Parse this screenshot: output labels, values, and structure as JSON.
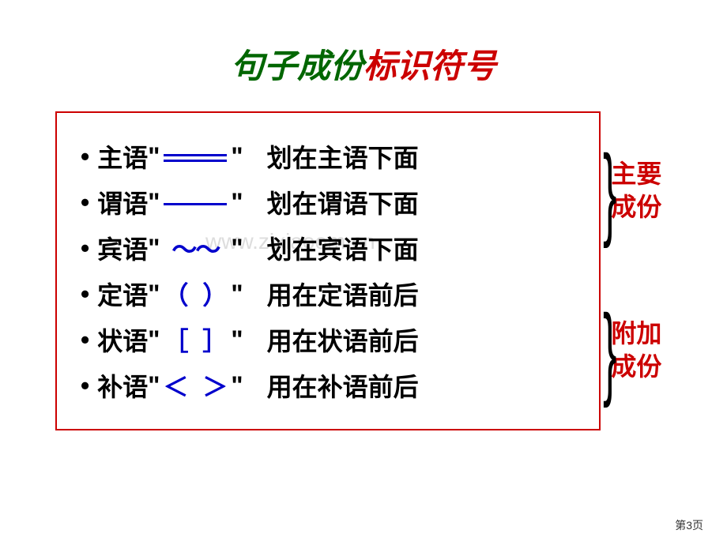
{
  "title": {
    "main": "句子成份",
    "sub": "标识符号"
  },
  "rows": [
    {
      "label": "主语",
      "symbol_type": "double-line",
      "quote_open": "\"",
      "quote_close": "\"",
      "description": "划在主语下面"
    },
    {
      "label": "谓语",
      "symbol_type": "single-line",
      "quote_open": "\"",
      "quote_close": "\"",
      "description": "划在谓语下面"
    },
    {
      "label": "宾语",
      "symbol_type": "wave",
      "symbol_text": "～～",
      "quote_open": "\"",
      "quote_close": "\"",
      "description": "划在宾语下面"
    },
    {
      "label": "定语",
      "symbol_type": "paren",
      "symbol_open": "（",
      "symbol_close": "）",
      "quote_open": "\"",
      "quote_close": "\"",
      "description": "用在定语前后"
    },
    {
      "label": "状语",
      "symbol_type": "bracket",
      "symbol_open": "［",
      "symbol_close": "］",
      "quote_open": "\"",
      "quote_close": "\"",
      "description": "用在状语前后"
    },
    {
      "label": "补语",
      "symbol_type": "angle",
      "symbol_open": "＜",
      "symbol_close": "＞",
      "quote_open": "\"",
      "quote_close": "\"",
      "description": "用在补语前后"
    }
  ],
  "categories": {
    "main": "主要成份",
    "additional": "附加成份"
  },
  "watermark": "www.zixiaoom.cn",
  "page_number": "第3页",
  "colors": {
    "title_main": "#006600",
    "title_sub": "#cc0000",
    "border": "#cc0000",
    "symbol": "#0000cc",
    "text": "#000000",
    "category": "#cc0000",
    "background": "#ffffff"
  },
  "fonts": {
    "title_size": 42,
    "row_size": 32,
    "category_size": 32,
    "page_num_size": 14
  }
}
